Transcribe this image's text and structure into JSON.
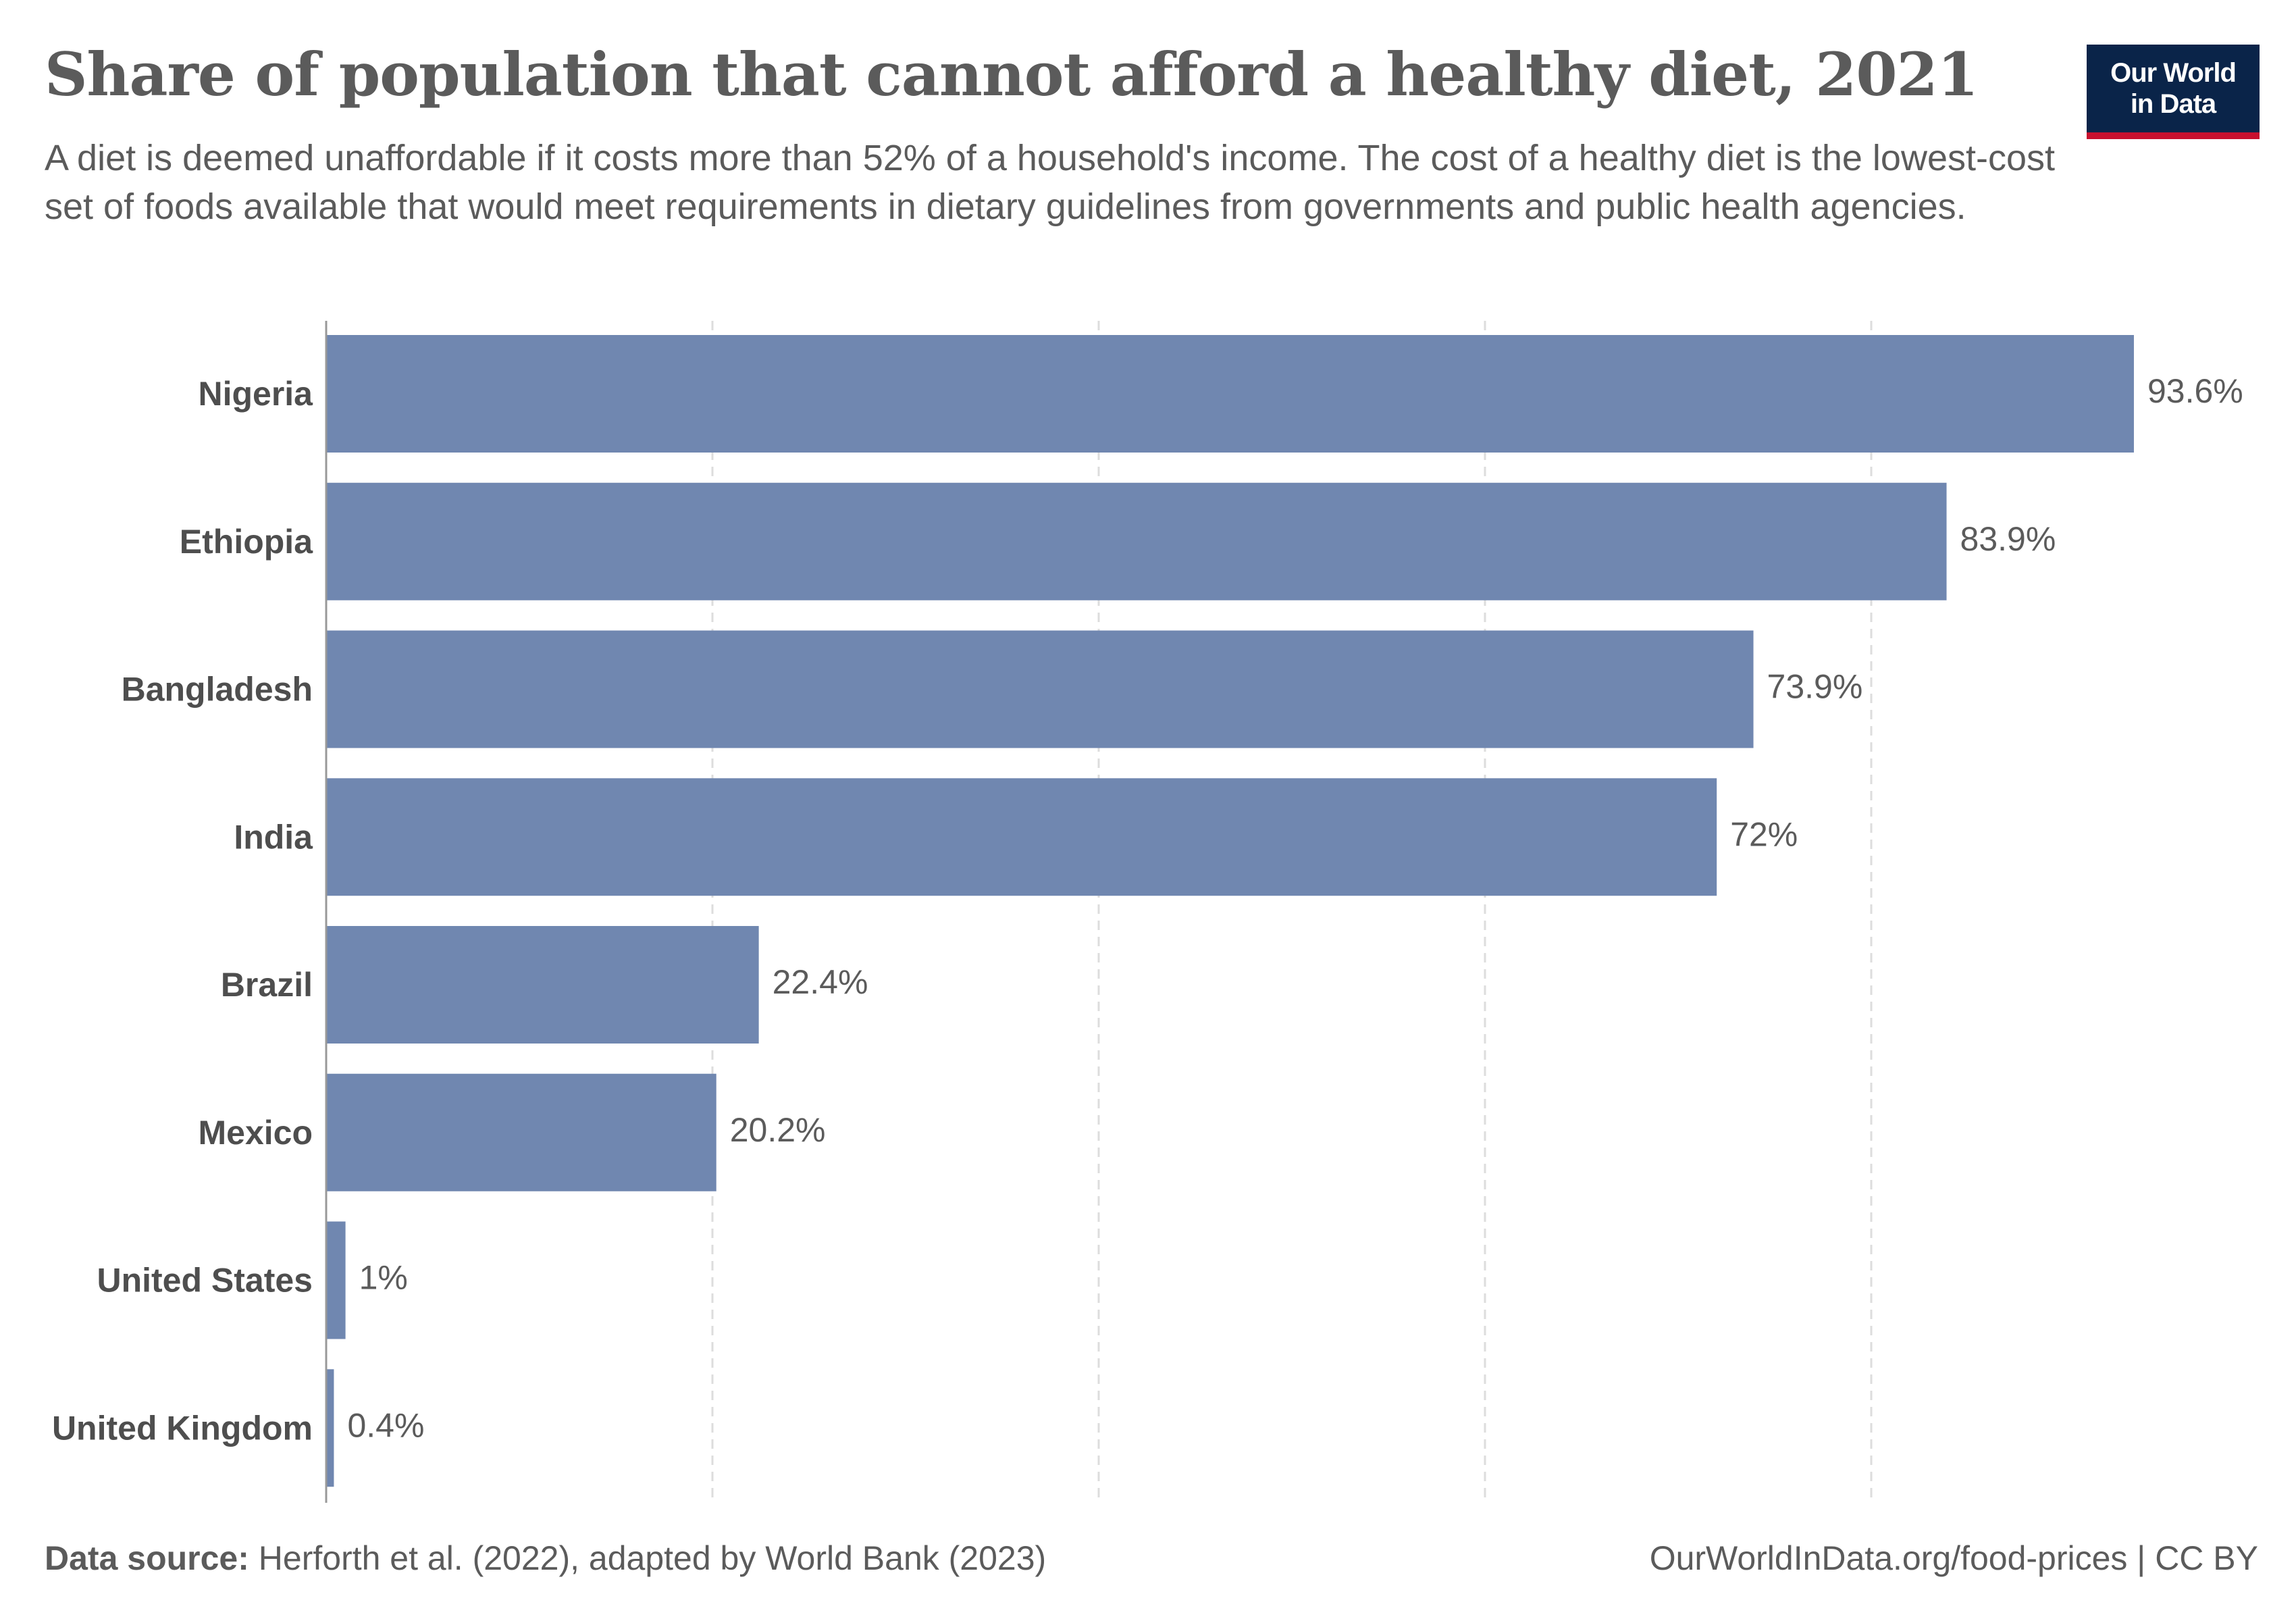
{
  "header": {
    "title": "Share of population that cannot afford a healthy diet, 2021",
    "subtitle": "A diet is deemed unaffordable if it costs more than 52% of a household's income. The cost of a healthy diet is the lowest-cost set of foods available that would meet requirements in dietary guidelines from governments and public health agencies."
  },
  "logo": {
    "line1": "Our World",
    "line2": "in Data"
  },
  "footer": {
    "source_label": "Data source:",
    "source_text": "Herforth et al. (2022), adapted by World Bank (2023)",
    "url_license": "OurWorldInData.org/food-prices | CC BY"
  },
  "colors": {
    "bar": "#7087b0",
    "grid": "#dddddd",
    "axis": "#999999",
    "logo_bg": "#0a2449",
    "logo_accent": "#c8102e"
  },
  "chart_data": {
    "type": "bar",
    "orientation": "horizontal",
    "categories": [
      "Nigeria",
      "Ethiopia",
      "Bangladesh",
      "India",
      "Brazil",
      "Mexico",
      "United States",
      "United Kingdom"
    ],
    "values": [
      93.6,
      83.9,
      73.9,
      72,
      22.4,
      20.2,
      1,
      0.4
    ],
    "value_labels": [
      "93.6%",
      "83.9%",
      "73.9%",
      "72%",
      "22.4%",
      "20.2%",
      "1%",
      "0.4%"
    ],
    "title": "Share of population that cannot afford a healthy diet, 2021",
    "xlim": [
      0,
      100
    ],
    "gridlines": [
      20,
      40,
      60,
      80
    ],
    "grid": true,
    "legend": "none"
  }
}
